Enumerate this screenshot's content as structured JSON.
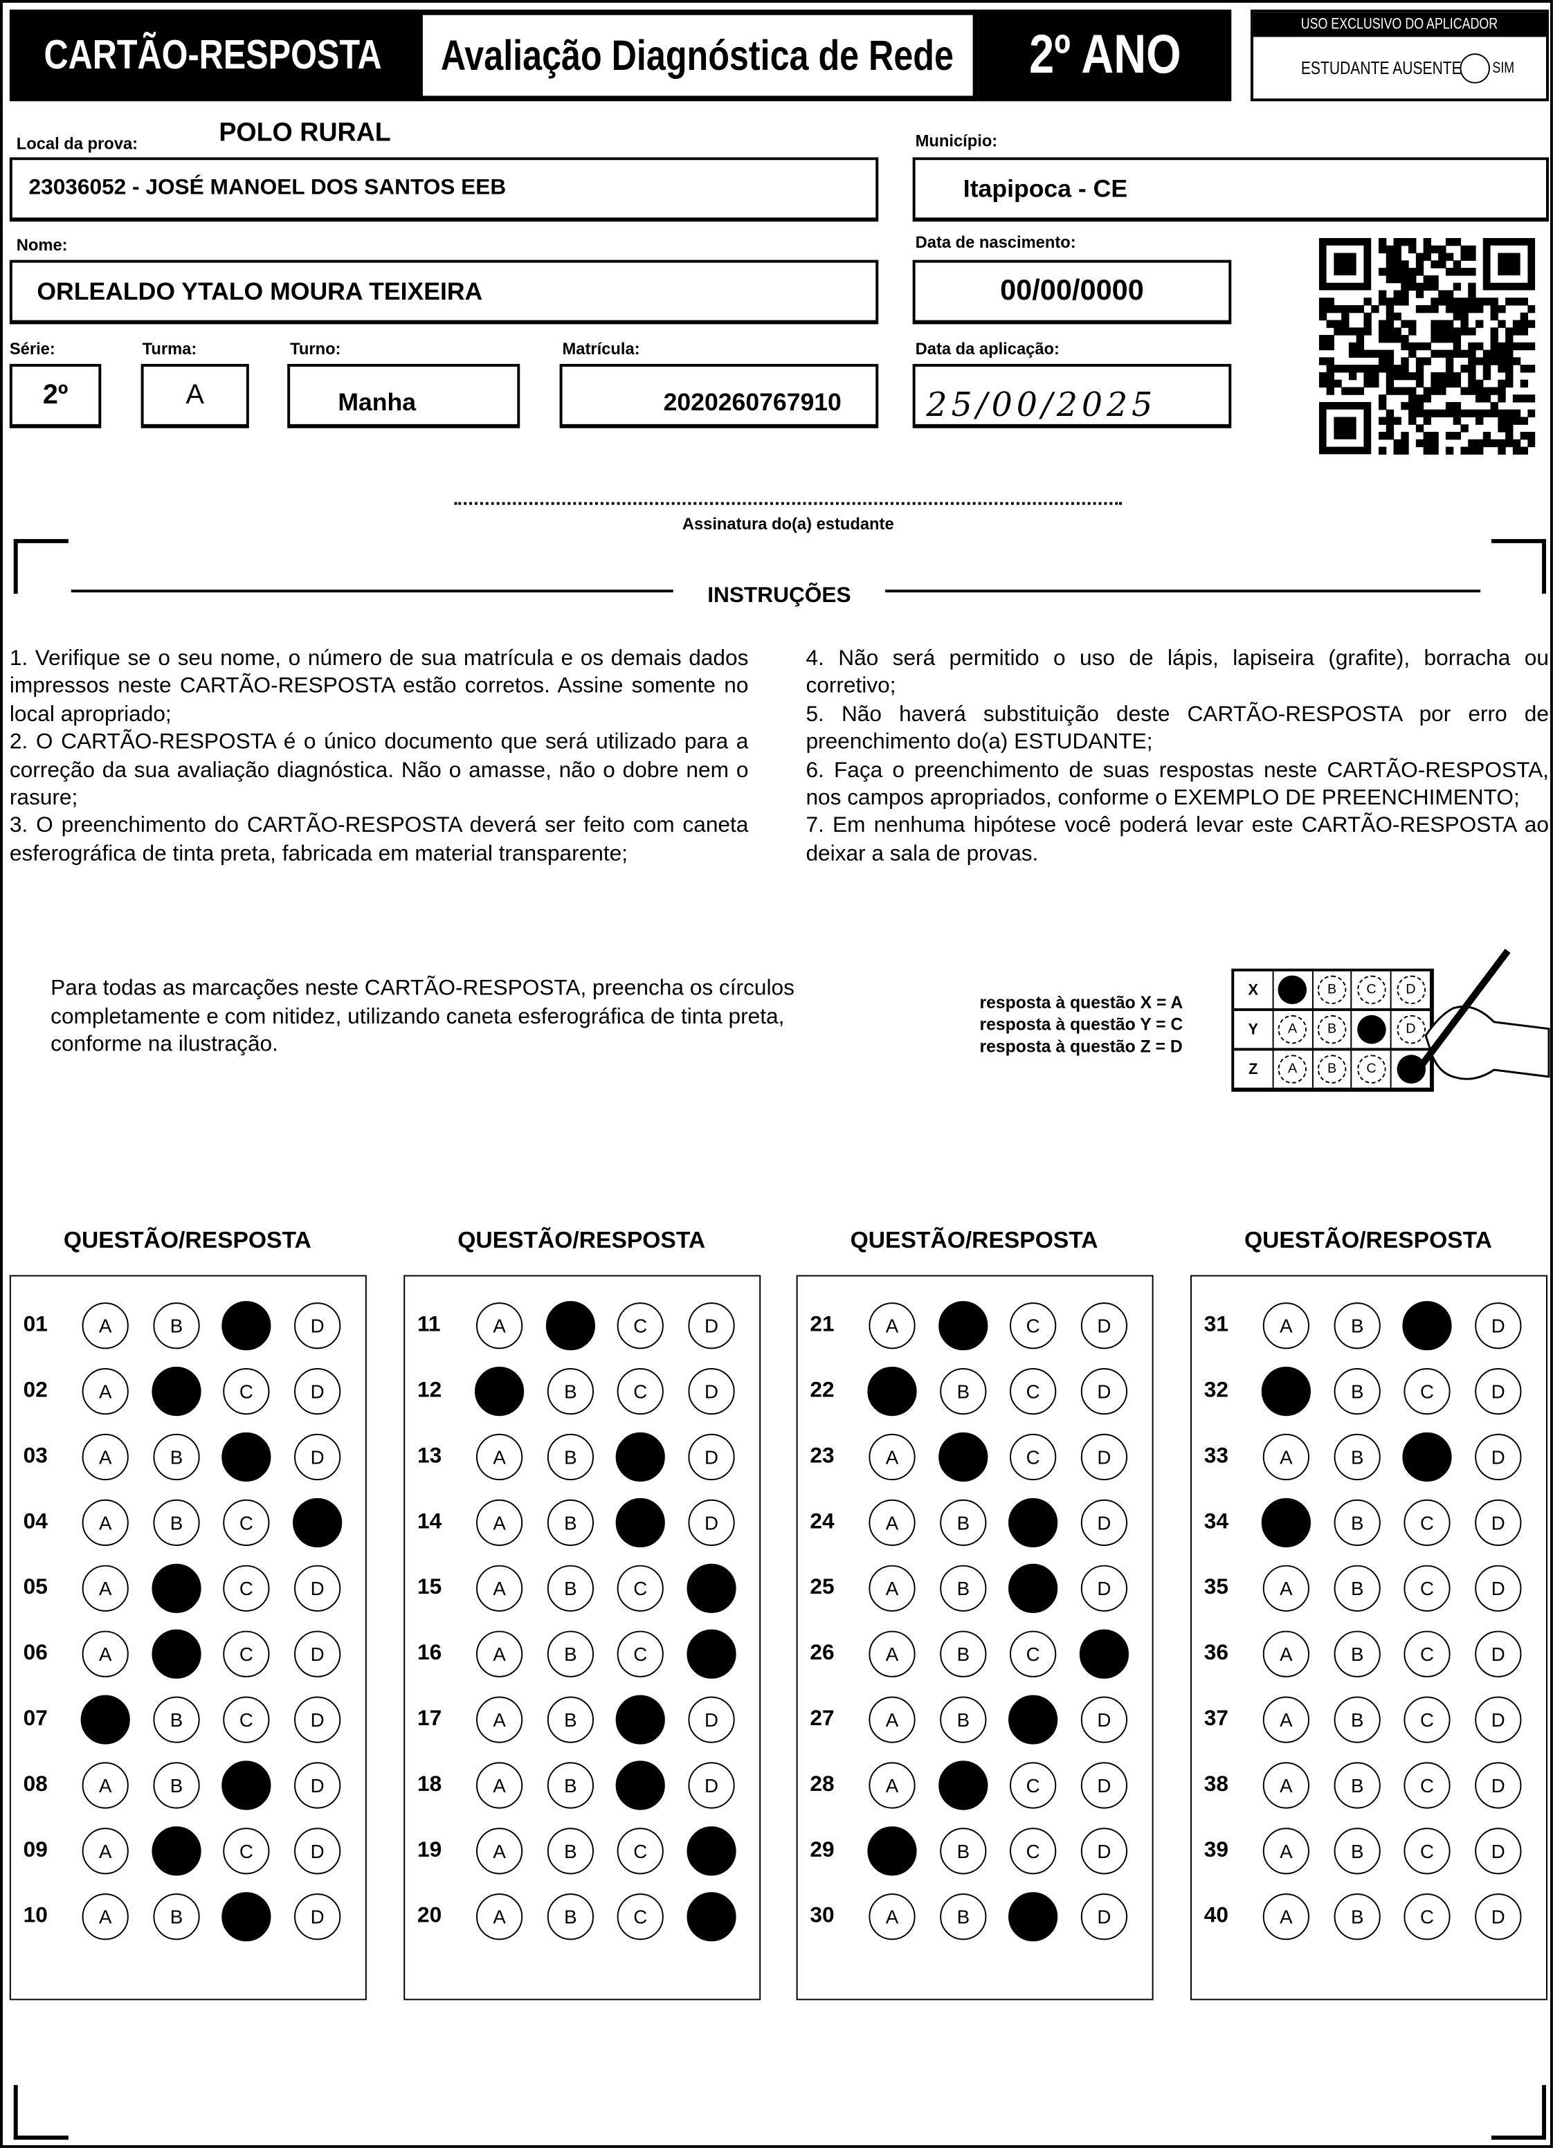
{
  "header": {
    "card_title": "CARTÃO-RESPOSTA",
    "exam_title": "Avaliação Diagnóstica de Rede",
    "grade": "2º ANO",
    "applicator_title": "USO EXCLUSIVO DO APLICADOR",
    "absent_label": "ESTUDANTE AUSENTE",
    "absent_option": "SIM"
  },
  "student": {
    "local_label": "Local da prova:",
    "polo": "POLO RURAL",
    "school": "23036052 - JOSÉ MANOEL DOS SANTOS EEB",
    "municipio_label": "Município:",
    "municipio": "Itapipoca - CE",
    "nome_label": "Nome:",
    "nome": "ORLEALDO YTALO MOURA TEIXEIRA",
    "nascimento_label": "Data de nascimento:",
    "nascimento": "00/00/0000",
    "serie_label": "Série:",
    "serie": "2º",
    "turma_label": "Turma:",
    "turma": "A",
    "turno_label": "Turno:",
    "turno": "Manha",
    "matricula_label": "Matrícula:",
    "matricula": "2020260767910",
    "aplicacao_label": "Data da aplicação:",
    "aplicacao": "25/00/2025",
    "assinatura_label": "Assinatura do(a) estudante"
  },
  "instructions": {
    "title": "INSTRUÇÕES",
    "left": [
      "1. Verifique se o seu nome, o número de sua matrícula e os demais dados impressos neste CARTÃO-RESPOSTA estão corretos. Assine somente no local apropriado;",
      "2. O CARTÃO-RESPOSTA é o único documento que será utilizado para a correção da sua avaliação diagnóstica. Não o amasse, não o dobre nem o rasure;",
      "3. O preenchimento do CARTÃO-RESPOSTA deverá ser feito com caneta esferográfica de tinta preta, fabricada em material transparente;"
    ],
    "right": [
      "4. Não será permitido o uso de lápis, lapiseira (grafite), borracha ou corretivo;",
      "5. Não haverá substituição deste CARTÃO-RESPOSTA por erro de preenchimento do(a) ESTUDANTE;",
      "6. Faça o preenchimento de suas respostas neste CARTÃO-RESPOSTA, nos campos apropriados, conforme o EXEMPLO DE PREENCHIMENTO;",
      "7. Em nenhuma hipótese você poderá levar este CARTÃO-RESPOSTA ao deixar a sala de provas."
    ],
    "fill_note": "Para todas as marcações neste CARTÃO-RESPOSTA, preencha os círculos completamente e com nitidez, utilizando caneta esferográfica de tinta preta, conforme na ilustração."
  },
  "example": {
    "legend": [
      "resposta à questão X = A",
      "resposta à questão Y = C",
      "resposta à questão Z = D"
    ],
    "rows": [
      {
        "q": "X",
        "marked": "A"
      },
      {
        "q": "Y",
        "marked": "C"
      },
      {
        "q": "Z",
        "marked": "D"
      }
    ]
  },
  "options": [
    "A",
    "B",
    "C",
    "D"
  ],
  "answer_header": "QUESTÃO/RESPOSTA",
  "answers": [
    [
      {
        "q": "01",
        "m": "C"
      },
      {
        "q": "02",
        "m": "B"
      },
      {
        "q": "03",
        "m": "C"
      },
      {
        "q": "04",
        "m": "D"
      },
      {
        "q": "05",
        "m": "B"
      },
      {
        "q": "06",
        "m": "B"
      },
      {
        "q": "07",
        "m": "A"
      },
      {
        "q": "08",
        "m": "C"
      },
      {
        "q": "09",
        "m": "B"
      },
      {
        "q": "10",
        "m": "C"
      }
    ],
    [
      {
        "q": "11",
        "m": "B"
      },
      {
        "q": "12",
        "m": "A"
      },
      {
        "q": "13",
        "m": "C"
      },
      {
        "q": "14",
        "m": "C"
      },
      {
        "q": "15",
        "m": "D"
      },
      {
        "q": "16",
        "m": "D"
      },
      {
        "q": "17",
        "m": "C"
      },
      {
        "q": "18",
        "m": "C"
      },
      {
        "q": "19",
        "m": "D"
      },
      {
        "q": "20",
        "m": "D"
      }
    ],
    [
      {
        "q": "21",
        "m": "B"
      },
      {
        "q": "22",
        "m": "A"
      },
      {
        "q": "23",
        "m": "B"
      },
      {
        "q": "24",
        "m": "C"
      },
      {
        "q": "25",
        "m": "C"
      },
      {
        "q": "26",
        "m": "D"
      },
      {
        "q": "27",
        "m": "C"
      },
      {
        "q": "28",
        "m": "B"
      },
      {
        "q": "29",
        "m": "A"
      },
      {
        "q": "30",
        "m": "C"
      }
    ],
    [
      {
        "q": "31",
        "m": "C"
      },
      {
        "q": "32",
        "m": "A"
      },
      {
        "q": "33",
        "m": "C"
      },
      {
        "q": "34",
        "m": "A"
      },
      {
        "q": "35",
        "m": ""
      },
      {
        "q": "36",
        "m": ""
      },
      {
        "q": "37",
        "m": ""
      },
      {
        "q": "38",
        "m": ""
      },
      {
        "q": "39",
        "m": ""
      },
      {
        "q": "40",
        "m": ""
      }
    ]
  ]
}
